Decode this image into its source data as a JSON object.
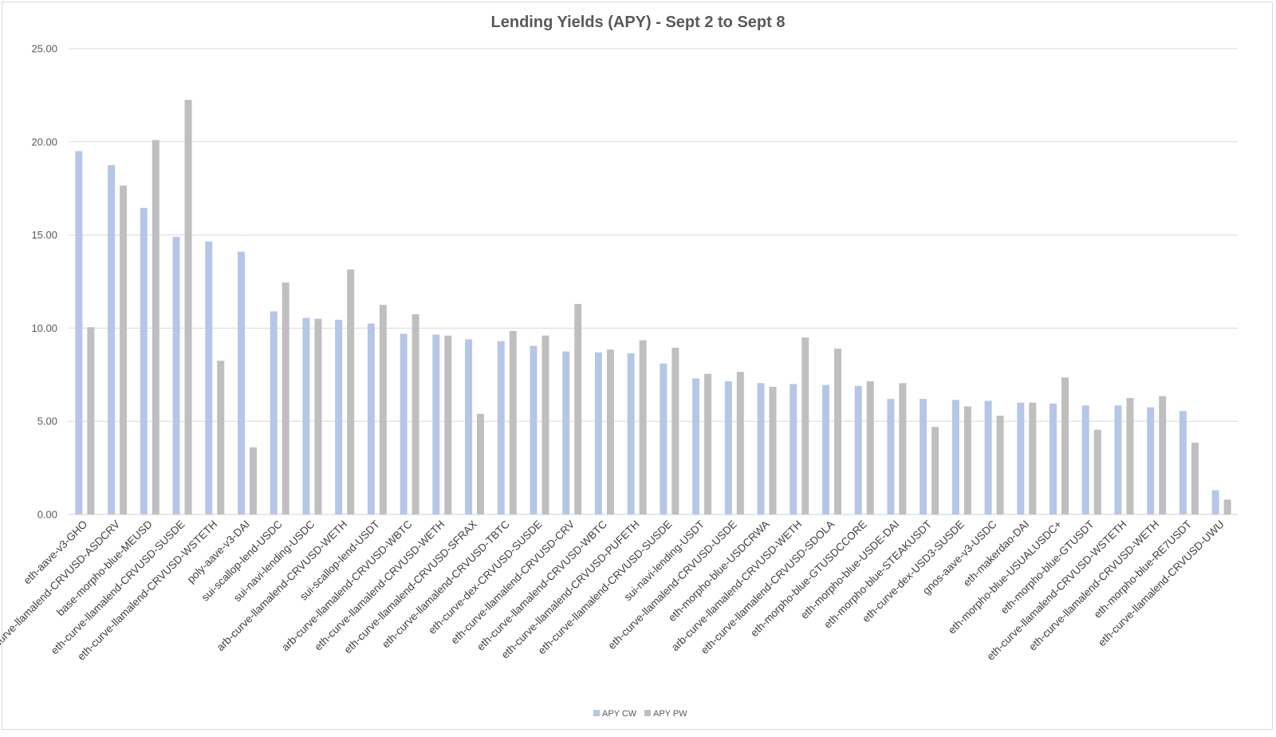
{
  "chart_data": {
    "type": "bar",
    "title": "Lending Yields (APY) - Sept 2 to Sept 8",
    "xlabel": "",
    "ylabel": "",
    "ylim": [
      0,
      25
    ],
    "yticks": [
      "0.00",
      "5.00",
      "10.00",
      "15.00",
      "20.00",
      "25.00"
    ],
    "grid": true,
    "legend_position": "bottom",
    "categories": [
      "eth-aave-v3-GHO",
      "eth-curve-llamalend-CRVUSD-ASDCRV",
      "base-morpho-blue-MEUSD",
      "eth-curve-llamalend-CRVUSD-SUSDE",
      "eth-curve-llamalend-CRVUSD-WSTETH",
      "poly-aave-v3-DAI",
      "sui-scallop-lend-USDC",
      "sui-navi-lending-USDC",
      "arb-curve-llamalend-CRVUSD-WETH",
      "sui-scallop-lend-USDT",
      "arb-curve-llamalend-CRVUSD-WBTC",
      "eth-curve-llamalend-CRVUSD-WETH",
      "eth-curve-llamalend-CRVUSD-SFRAX",
      "eth-curve-llamalend-CRVUSD-TBTC",
      "eth-curve-dex-CRVUSD-SUSDE",
      "eth-curve-llamalend-CRVUSD-CRV",
      "eth-curve-llamalend-CRVUSD-WBTC",
      "eth-curve-llamalend-CRVUSD-PUFETH",
      "eth-curve-llamalend-CRVUSD-SUSDE",
      "sui-navi-lending-USDT",
      "eth-curve-llamalend-CRVUSD-USDE",
      "eth-morpho-blue-USDCRWA",
      "arb-curve-llamalend-CRVUSD-WETH",
      "eth-curve-llamalend-CRVUSD-SDOLA",
      "eth-morpho-blue-GTUSDCCORE",
      "eth-morpho-blue-USDE-DAI",
      "eth-morpho-blue-STEAKUSDT",
      "eth-curve-dex-USD3-SUSDE",
      "gnos-aave-v3-USDC",
      "eth-makerdao-DAI",
      "eth-morpho-blue-USUALUSDC+",
      "eth-morpho-blue-GTUSDT",
      "eth-curve-llamalend-CRVUSD-WSTETH",
      "eth-curve-llamalend-CRVUSD-WETH",
      "eth-morpho-blue-RE7USDT",
      "eth-curve-llamalend-CRVUSD-UWU"
    ],
    "series": [
      {
        "name": "APY CW",
        "color": "#b4c7e7",
        "values": [
          19.5,
          18.75,
          16.45,
          14.9,
          14.65,
          14.1,
          10.9,
          10.55,
          10.45,
          10.25,
          9.7,
          9.65,
          9.4,
          9.3,
          9.05,
          8.75,
          8.7,
          8.65,
          8.1,
          7.3,
          7.15,
          7.05,
          7.0,
          6.95,
          6.9,
          6.2,
          6.2,
          6.15,
          6.1,
          6.0,
          5.95,
          5.85,
          5.85,
          5.75,
          5.55,
          1.3
        ]
      },
      {
        "name": "APY PW",
        "color": "#bfbfbf",
        "values": [
          10.05,
          17.65,
          20.1,
          22.25,
          8.25,
          3.6,
          12.45,
          10.5,
          13.15,
          11.25,
          10.75,
          9.6,
          5.4,
          9.85,
          9.6,
          11.3,
          8.85,
          9.35,
          8.95,
          7.55,
          7.65,
          6.85,
          9.5,
          8.9,
          7.15,
          7.05,
          4.7,
          5.8,
          5.3,
          6.0,
          7.35,
          4.55,
          6.25,
          6.35,
          3.85,
          0.8
        ]
      }
    ]
  }
}
